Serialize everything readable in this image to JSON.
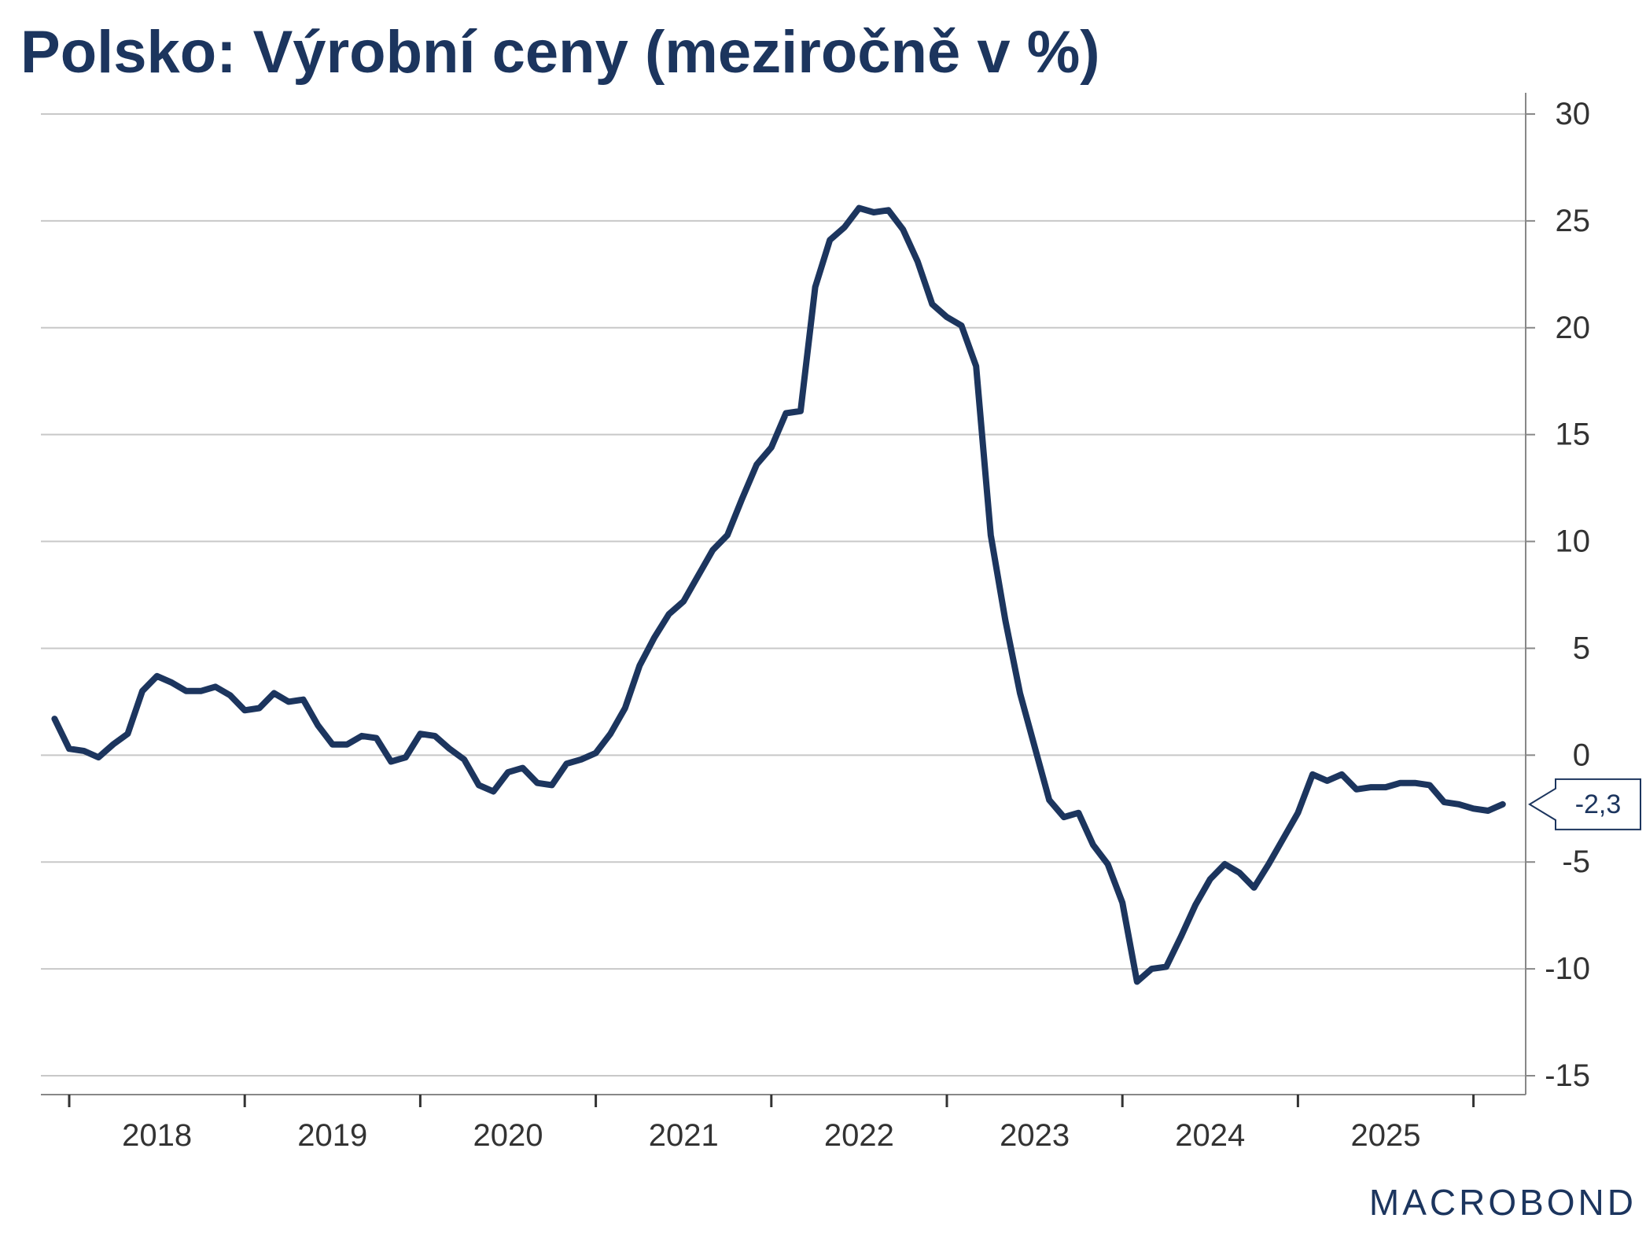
{
  "title": "Polsko: Výrobní ceny (meziročně v %)",
  "watermark": "MACROBOND",
  "colors": {
    "line": "#1c355e",
    "grid": "#c8c8c8",
    "axis": "#888888",
    "text": "#333333"
  },
  "chart_data": {
    "type": "line",
    "title": "Polsko: Výrobní ceny (meziročně v %)",
    "xlabel": "",
    "ylabel": "",
    "y_axis_side": "right",
    "ylim": [
      -15,
      30
    ],
    "y_ticks": [
      30,
      25,
      20,
      15,
      10,
      5,
      0,
      -5,
      -10,
      -15
    ],
    "x_ticks": [
      "2018",
      "2019",
      "2020",
      "2021",
      "2022",
      "2023",
      "2024",
      "2025"
    ],
    "grid": true,
    "start_month": "2017-12",
    "last_value_label": "-2,3",
    "series": [
      {
        "values": [
          1.7,
          0.3,
          0.2,
          -0.1,
          0.5,
          1.0,
          3.0,
          3.7,
          3.4,
          3.0,
          3.0,
          3.2,
          2.8,
          2.1,
          2.2,
          2.9,
          2.5,
          2.6,
          1.4,
          0.5,
          0.5,
          0.9,
          0.8,
          -0.3,
          -0.1,
          1.0,
          0.9,
          0.3,
          -0.2,
          -1.4,
          -1.7,
          -0.8,
          -0.6,
          -1.3,
          -1.4,
          -0.4,
          -0.2,
          0.1,
          1.0,
          2.2,
          4.2,
          5.5,
          6.6,
          7.2,
          8.4,
          9.6,
          10.3,
          12.0,
          13.6,
          14.4,
          16.0,
          16.1,
          21.9,
          24.1,
          24.7,
          25.6,
          25.4,
          25.5,
          24.6,
          23.1,
          21.1,
          20.5,
          20.1,
          18.2,
          10.3,
          6.3,
          2.9,
          0.4,
          -2.1,
          -2.9,
          -2.7,
          -4.2,
          -5.1,
          -6.9,
          -10.6,
          -10.0,
          -9.9,
          -8.5,
          -7.0,
          -5.8,
          -5.1,
          -5.5,
          -6.2,
          -5.1,
          -3.9,
          -2.7,
          -0.9,
          -1.2,
          -0.9,
          -1.6,
          -1.5,
          -1.5,
          -1.3,
          -1.3,
          -1.4,
          -2.2,
          -2.3,
          -2.5,
          -2.6,
          -2.3
        ]
      }
    ]
  }
}
